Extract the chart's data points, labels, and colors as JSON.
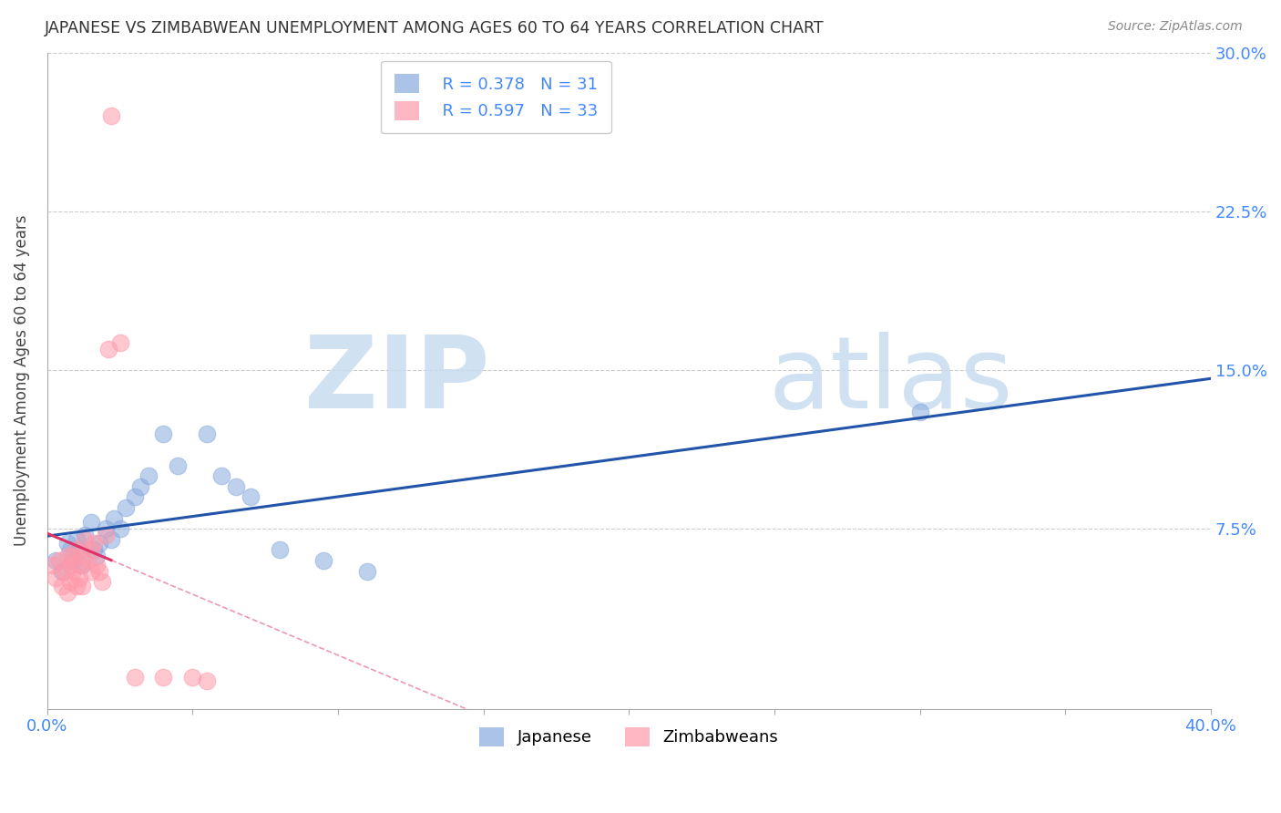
{
  "title": "JAPANESE VS ZIMBABWEAN UNEMPLOYMENT AMONG AGES 60 TO 64 YEARS CORRELATION CHART",
  "source": "Source: ZipAtlas.com",
  "ylabel": "Unemployment Among Ages 60 to 64 years",
  "xlim": [
    0.0,
    0.4
  ],
  "ylim": [
    -0.01,
    0.3
  ],
  "xticks": [
    0.0,
    0.05,
    0.1,
    0.15,
    0.2,
    0.25,
    0.3,
    0.35,
    0.4
  ],
  "ytick_positions": [
    0.075,
    0.15,
    0.225,
    0.3
  ],
  "yticklabels": [
    "7.5%",
    "15.0%",
    "22.5%",
    "30.0%"
  ],
  "legend_r_japanese": "R = 0.378",
  "legend_n_japanese": "N = 31",
  "legend_r_zimbabwean": "R = 0.597",
  "legend_n_zimbabwean": "N = 33",
  "japanese_color": "#88AADD",
  "zimbabwean_color": "#FF99AA",
  "japanese_line_color": "#2255AA",
  "zimbabwean_line_color": "#DD3366",
  "japanese_x": [
    0.003,
    0.005,
    0.007,
    0.008,
    0.009,
    0.01,
    0.011,
    0.012,
    0.013,
    0.015,
    0.016,
    0.017,
    0.018,
    0.02,
    0.022,
    0.023,
    0.025,
    0.027,
    0.03,
    0.032,
    0.035,
    0.04,
    0.045,
    0.055,
    0.06,
    0.065,
    0.07,
    0.08,
    0.095,
    0.11,
    0.3
  ],
  "japanese_y": [
    0.06,
    0.055,
    0.068,
    0.065,
    0.06,
    0.07,
    0.065,
    0.058,
    0.072,
    0.078,
    0.065,
    0.062,
    0.068,
    0.075,
    0.07,
    0.08,
    0.075,
    0.085,
    0.09,
    0.095,
    0.1,
    0.12,
    0.105,
    0.12,
    0.1,
    0.095,
    0.09,
    0.065,
    0.06,
    0.055,
    0.13
  ],
  "zimbabwean_x": [
    0.002,
    0.003,
    0.004,
    0.005,
    0.006,
    0.007,
    0.007,
    0.008,
    0.008,
    0.009,
    0.009,
    0.01,
    0.01,
    0.011,
    0.011,
    0.012,
    0.012,
    0.013,
    0.014,
    0.015,
    0.015,
    0.016,
    0.017,
    0.018,
    0.019,
    0.02,
    0.021,
    0.022,
    0.025,
    0.03,
    0.04,
    0.05,
    0.055
  ],
  "zimbabwean_y": [
    0.058,
    0.052,
    0.06,
    0.048,
    0.055,
    0.062,
    0.045,
    0.058,
    0.05,
    0.062,
    0.055,
    0.065,
    0.048,
    0.058,
    0.052,
    0.062,
    0.048,
    0.07,
    0.06,
    0.065,
    0.055,
    0.068,
    0.058,
    0.055,
    0.05,
    0.072,
    0.16,
    0.27,
    0.163,
    0.005,
    0.005,
    0.005,
    0.003
  ],
  "background_color": "#FFFFFF",
  "grid_color": "#CCCCCC",
  "tick_label_color": "#4488FF",
  "title_color": "#333333",
  "source_color": "#888888"
}
